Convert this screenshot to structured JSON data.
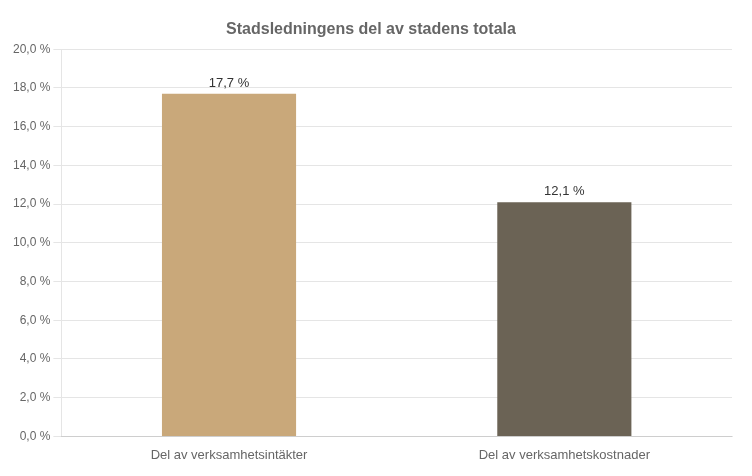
{
  "chart_data": {
    "type": "bar",
    "title": "Stadsledningens del av stadens totala",
    "categories": [
      "Del av verksamhetsintäkter",
      "Del av verksamhetskostnader"
    ],
    "values": [
      0.177,
      0.121
    ],
    "value_labels": [
      "17,7 %",
      "12,1 %"
    ],
    "colors": [
      "#C9A87A",
      "#6B6355"
    ],
    "ylim": [
      0,
      0.2
    ],
    "yticks": [
      {
        "value": 0.0,
        "label": "0,0 %"
      },
      {
        "value": 0.02,
        "label": "2,0 %"
      },
      {
        "value": 0.04,
        "label": "4,0 %"
      },
      {
        "value": 0.06,
        "label": "6,0 %"
      },
      {
        "value": 0.08,
        "label": "8,0 %"
      },
      {
        "value": 0.1,
        "label": "10,0 %"
      },
      {
        "value": 0.12,
        "label": "12,0 %"
      },
      {
        "value": 0.14,
        "label": "14,0 %"
      },
      {
        "value": 0.16,
        "label": "16,0 %"
      },
      {
        "value": 0.18,
        "label": "18,0 %"
      },
      {
        "value": 0.2,
        "label": "20,0 %"
      }
    ],
    "grid": true,
    "data_labels": true
  }
}
